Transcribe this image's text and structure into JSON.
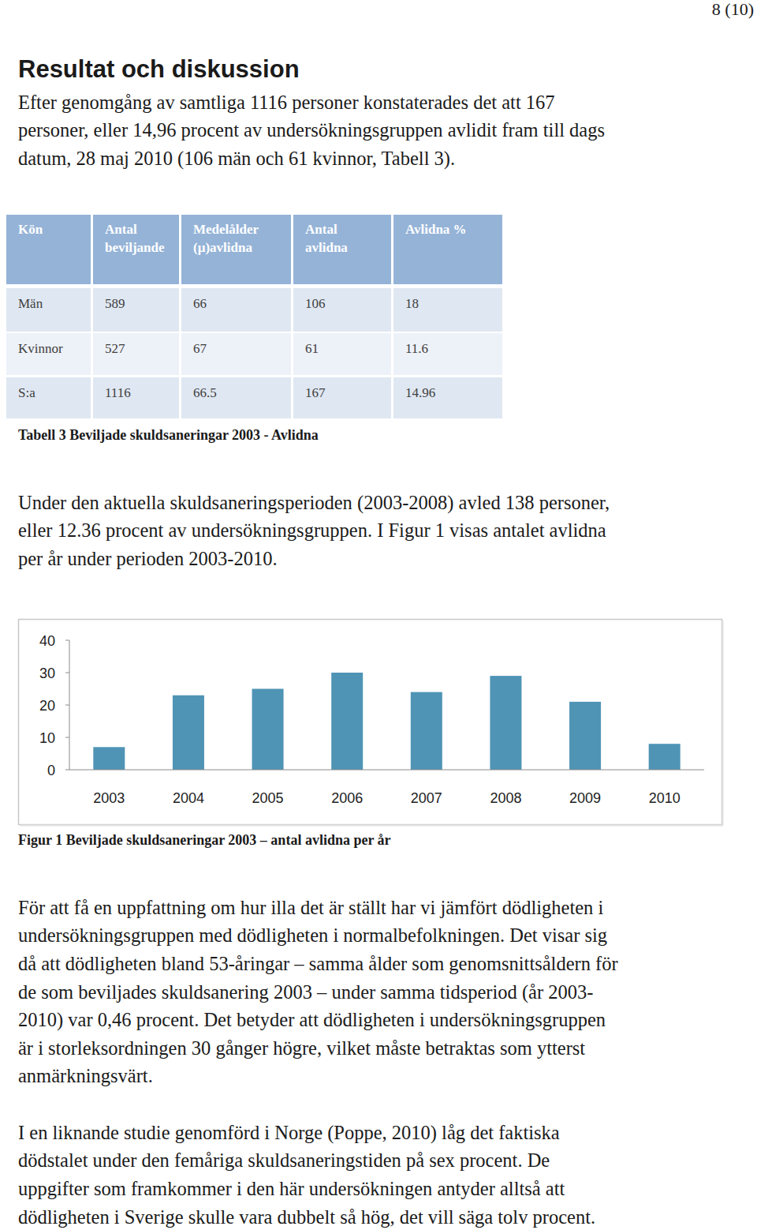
{
  "page_number": "8 (10)",
  "heading": "Resultat och diskussion",
  "paragraphs": [
    {
      "lines": [
        "Efter genomgång av samtliga 1116 personer konstaterades det att 167",
        "personer, eller 14,96 procent av undersökningsgruppen avlidit fram till dags",
        "datum, 28 maj 2010 (106 män och 61 kvinnor, Tabell 3)."
      ]
    },
    {
      "lines": [
        "Under den aktuella skuldsaneringsperioden (2003-2008) avled 138 personer,",
        "eller 12.36 procent av undersökningsgruppen. I Figur 1 visas antalet avlidna",
        "per år under perioden 2003-2010."
      ]
    },
    {
      "lines": [
        "För att få en uppfattning om hur illa det är ställt har vi jämfört dödligheten i",
        "undersökningsgruppen med dödligheten i normalbefolkningen. Det visar sig",
        "då att dödligheten bland 53-åringar – samma ålder som genomsnittsåldern för",
        "de som beviljades skuldsanering 2003 – under samma tidsperiod (år 2003-",
        "2010) var 0,46 procent. Det betyder att dödligheten i undersökningsgruppen",
        "är i storleksordningen 30 gånger högre, vilket måste betraktas som ytterst",
        "anmärkningsvärt."
      ]
    },
    {
      "lines": [
        "I en liknande studie genomförd i Norge (Poppe, 2010) låg det faktiska",
        "dödstalet under den femåriga skuldsaneringstiden på sex procent. De",
        "uppgifter som framkommer i den här undersökningen antyder alltså att",
        "dödligheten i Sverige skulle vara dubbelt så hög, det vill säga tolv procent."
      ]
    }
  ],
  "table": {
    "header": [
      [
        "Kön"
      ],
      [
        "Antal",
        "beviljande"
      ],
      [
        "Medelålder",
        "(µ)avlidna"
      ],
      [
        "Antal",
        "avlidna"
      ],
      [
        "Avlidna %"
      ]
    ],
    "rows": [
      [
        "Män",
        "589",
        "66",
        "106",
        "18"
      ],
      [
        "Kvinnor",
        "527",
        "67",
        "61",
        "11.6"
      ],
      [
        "S:a",
        "1116",
        "66.5",
        "167",
        "14.96"
      ]
    ],
    "caption": "Tabell 3 Beviljade skuldsaneringar 2003 - Avlidna"
  },
  "chart_data": {
    "type": "bar",
    "title": "Figur 1 Beviljade skuldsaneringar 2003 – antal avlidna per år",
    "categories": [
      "2003",
      "2004",
      "2005",
      "2006",
      "2007",
      "2008",
      "2009",
      "2010"
    ],
    "values": [
      7,
      23,
      25,
      30,
      24,
      29,
      21,
      8
    ],
    "color": "#4f94b5",
    "ylim": [
      0,
      40
    ],
    "yticks": [
      0,
      10,
      20,
      30,
      40
    ],
    "grid": false
  }
}
